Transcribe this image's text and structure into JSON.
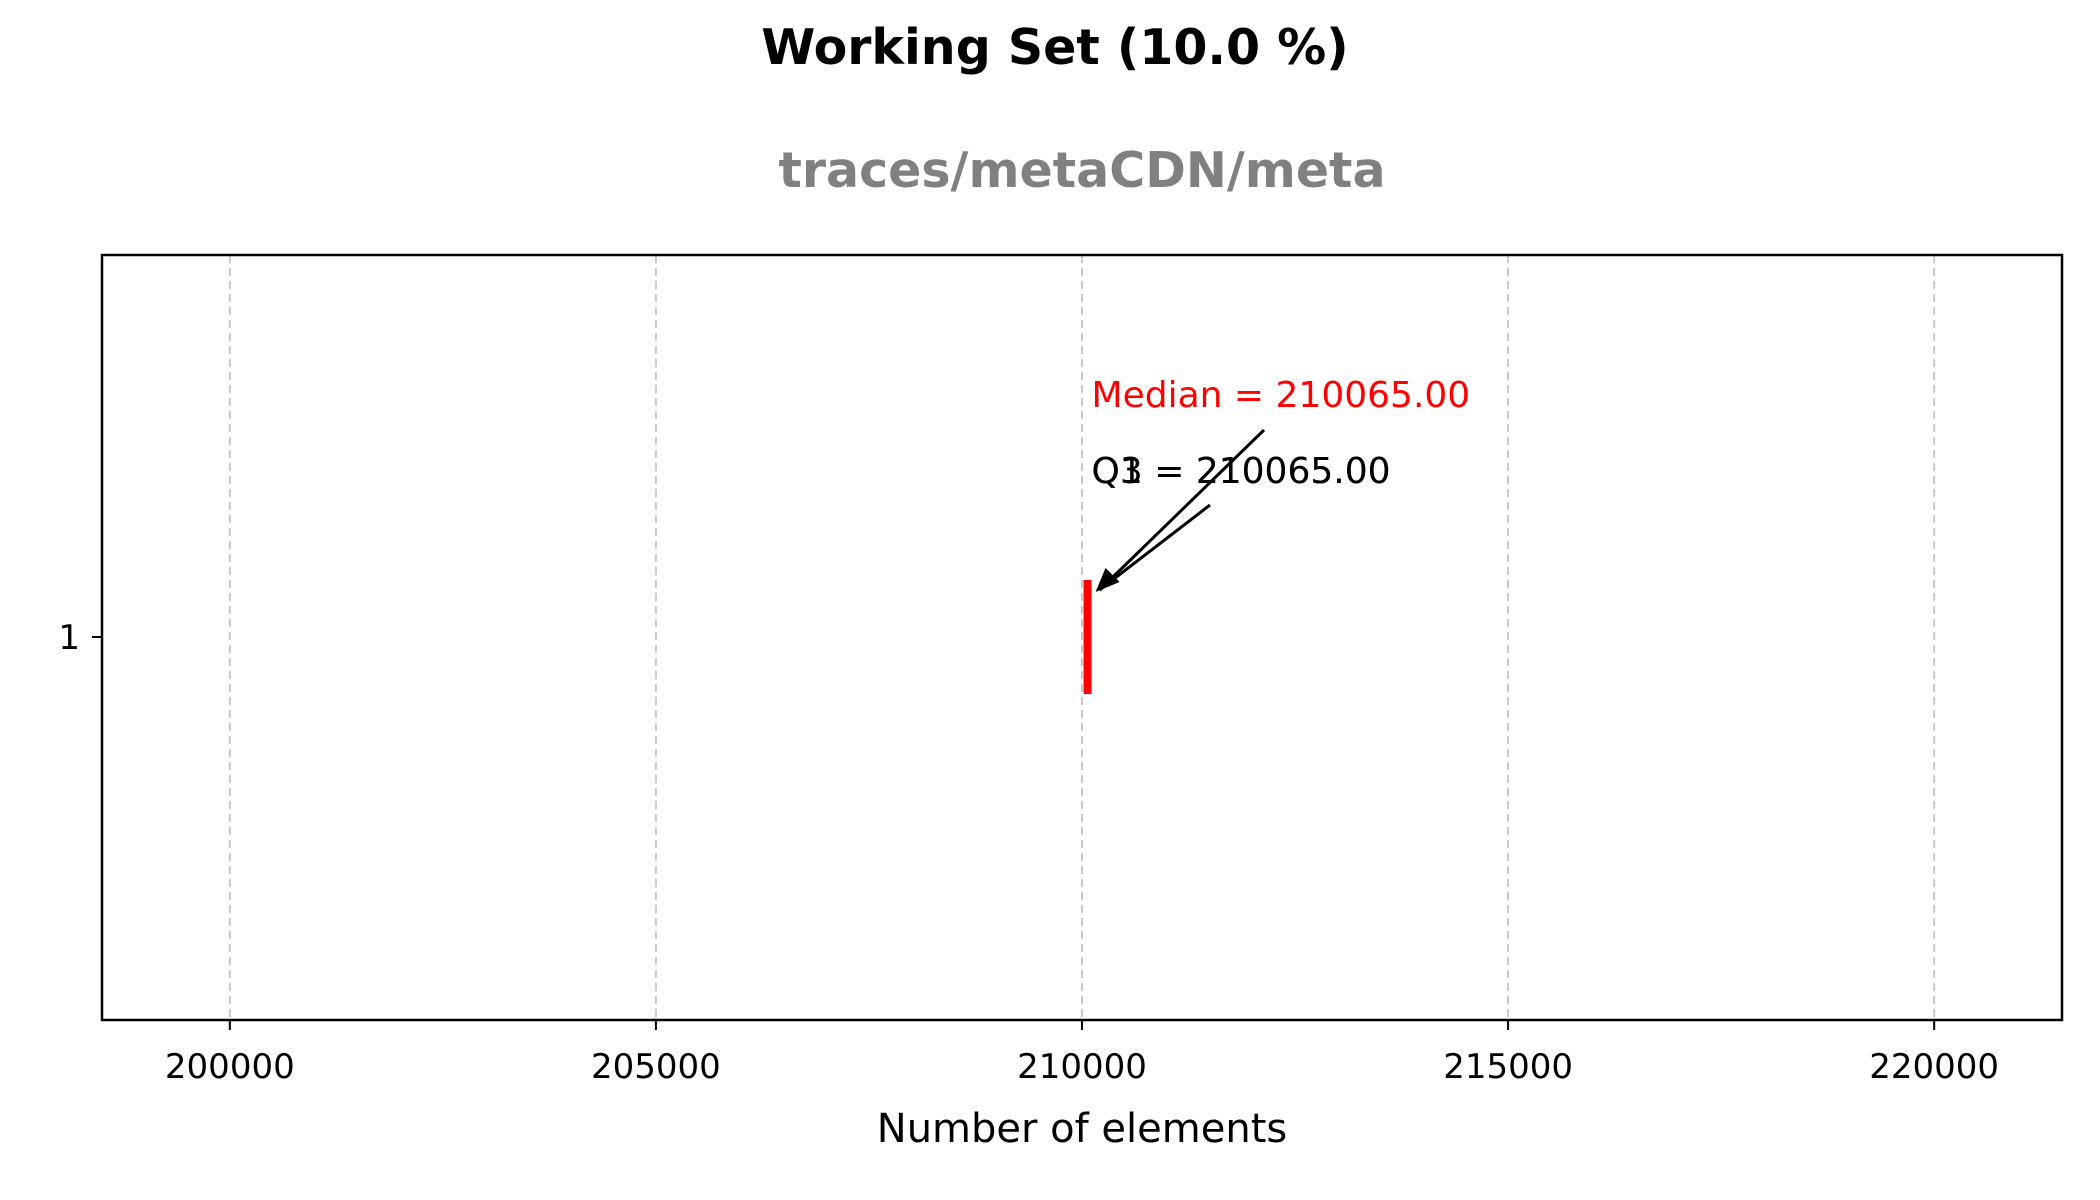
{
  "chart_data": {
    "type": "box",
    "title": "Working Set (10.0 %)",
    "subtitle": "traces/metaCDN/meta",
    "xlabel": "Number of elements",
    "ylabel": "",
    "orientation": "horizontal",
    "xlim": [
      198500,
      221500
    ],
    "x_ticks": [
      200000,
      205000,
      210000,
      215000,
      220000
    ],
    "x_tick_labels": [
      "200000",
      "205000",
      "210000",
      "215000",
      "220000"
    ],
    "y_ticks": [
      1
    ],
    "y_tick_labels": [
      "1"
    ],
    "grid": "x-dashed",
    "series": [
      {
        "position": 1,
        "min": 210065,
        "q1": 210065,
        "median": 210065,
        "q3": 210065,
        "max": 210065
      }
    ],
    "annotations": [
      {
        "text": "Median = 210065.00",
        "value": 210065,
        "color": "#ff0000"
      },
      {
        "text": "Q1 = 210065.00",
        "value": 210065,
        "color": "#000000"
      },
      {
        "text": "Q3 = 210065.00",
        "value": 210065,
        "color": "#000000"
      }
    ],
    "colors": {
      "median": "#ff0000",
      "grid": "#c8c8c8",
      "axes": "#000000",
      "subtitle": "#808080"
    }
  }
}
